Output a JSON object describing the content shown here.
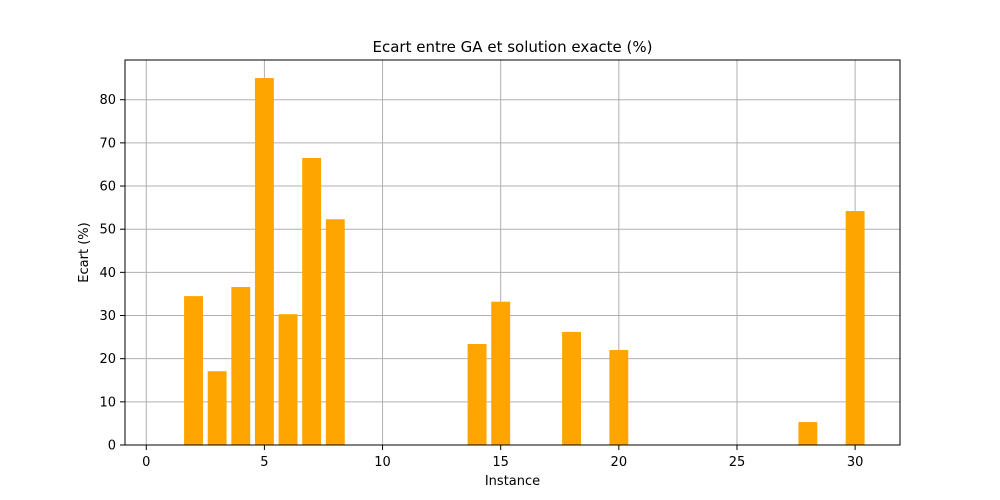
{
  "chart_data": {
    "type": "bar",
    "title": "Ecart entre GA et solution exacte (%)",
    "xlabel": "Instance",
    "ylabel": "Ecart (%)",
    "x": [
      2,
      3,
      4,
      5,
      6,
      7,
      8,
      14,
      15,
      18,
      20,
      28,
      30
    ],
    "values": [
      34.5,
      17.1,
      36.6,
      85.0,
      30.3,
      66.5,
      52.3,
      23.4,
      33.2,
      26.2,
      22.0,
      5.3,
      54.2
    ],
    "xlim": [
      -0.9,
      31.9
    ],
    "ylim": [
      0,
      89.2
    ],
    "xticks": [
      0,
      5,
      10,
      15,
      20,
      25,
      30
    ],
    "yticks": [
      0,
      10,
      20,
      30,
      40,
      50,
      60,
      70,
      80
    ],
    "bar_width": 0.8,
    "grid": true,
    "color": "#ffa500"
  }
}
